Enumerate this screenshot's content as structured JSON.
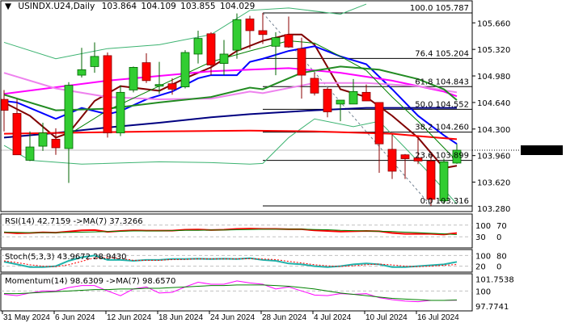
{
  "header": {
    "symbol": "USINDX.U24,Daily",
    "open": "103.864",
    "high": "104.109",
    "low": "103.855",
    "close": "104.029"
  },
  "chart_data": {
    "type": "candlestick",
    "price_axis": {
      "ticks": [
        "105.660",
        "105.320",
        "104.980",
        "104.640",
        "104.300",
        "103.960",
        "103.620",
        "103.280"
      ],
      "current": "104.029",
      "range": [
        103.28,
        105.88
      ]
    },
    "x_ticks": [
      {
        "date": "31 May 2024",
        "i": 0
      },
      {
        "date": "6 Jun 2024",
        "i": 4
      },
      {
        "date": "12 Jun 2024",
        "i": 8
      },
      {
        "date": "18 Jun 2024",
        "i": 12
      },
      {
        "date": "24 Jun 2024",
        "i": 16
      },
      {
        "date": "28 Jun 2024",
        "i": 20
      },
      {
        "date": "4 Jul 2024",
        "i": 24
      },
      {
        "date": "10 Jul 2024",
        "i": 28
      },
      {
        "date": "16 Jul 2024",
        "i": 32
      }
    ],
    "candles": [
      [
        104.68,
        104.8,
        104.27,
        104.54
      ],
      [
        104.5,
        104.68,
        103.97,
        103.97
      ],
      [
        103.9,
        104.27,
        103.89,
        104.07
      ],
      [
        104.08,
        104.38,
        104.02,
        104.25
      ],
      [
        104.17,
        104.31,
        103.97,
        104.06
      ],
      [
        104.05,
        104.9,
        103.61,
        104.86
      ],
      [
        104.99,
        105.34,
        104.96,
        105.06
      ],
      [
        105.1,
        105.41,
        105.02,
        105.23
      ],
      [
        105.24,
        105.28,
        104.19,
        104.25
      ],
      [
        104.25,
        104.86,
        104.21,
        104.77
      ],
      [
        104.8,
        105.1,
        104.77,
        105.09
      ],
      [
        105.15,
        105.27,
        104.89,
        104.92
      ],
      [
        104.85,
        105.16,
        104.75,
        104.87
      ],
      [
        104.88,
        104.95,
        104.74,
        104.81
      ],
      [
        104.84,
        105.31,
        104.82,
        105.28
      ],
      [
        105.26,
        105.56,
        105.14,
        105.46
      ],
      [
        105.52,
        105.54,
        104.99,
        105.12
      ],
      [
        105.14,
        105.44,
        104.99,
        105.26
      ],
      [
        105.31,
        105.78,
        105.2,
        105.7
      ],
      [
        105.71,
        105.75,
        105.33,
        105.56
      ],
      [
        105.56,
        105.787,
        105.39,
        105.51
      ],
      [
        105.36,
        105.54,
        104.99,
        105.47
      ],
      [
        105.51,
        105.74,
        105.34,
        105.35
      ],
      [
        105.33,
        105.47,
        104.69,
        104.99
      ],
      [
        104.95,
        105.02,
        104.73,
        104.76
      ],
      [
        104.81,
        104.83,
        104.45,
        104.52
      ],
      [
        104.62,
        104.66,
        104.4,
        104.67
      ],
      [
        104.62,
        104.94,
        104.62,
        104.78
      ],
      [
        104.77,
        104.87,
        104.66,
        104.66
      ],
      [
        104.64,
        104.64,
        103.74,
        104.11
      ],
      [
        104.04,
        104.23,
        103.66,
        103.76
      ],
      [
        103.97,
        103.98,
        103.66,
        103.92
      ],
      [
        103.93,
        104.2,
        103.85,
        103.89
      ],
      [
        103.89,
        103.97,
        103.316,
        103.4
      ],
      [
        103.38,
        103.92,
        103.34,
        103.88
      ],
      [
        103.864,
        104.109,
        103.855,
        104.029
      ]
    ],
    "colors": {
      "up": "#32cd32",
      "down": "#ff0000",
      "up_border": "#006400",
      "down_border": "#8b0000"
    },
    "moving_averages": [
      {
        "color": "#800000",
        "points": [
          [
            0,
            104.64
          ],
          [
            2,
            104.47
          ],
          [
            4,
            104.19
          ],
          [
            5,
            104.25
          ],
          [
            7,
            104.66
          ],
          [
            9,
            104.85
          ],
          [
            12,
            104.79
          ],
          [
            14,
            104.95
          ],
          [
            16,
            105.09
          ],
          [
            18,
            105.3
          ],
          [
            20,
            105.43
          ],
          [
            22,
            105.51
          ],
          [
            23,
            105.51
          ],
          [
            24,
            105.38
          ],
          [
            26,
            104.81
          ],
          [
            28,
            104.71
          ],
          [
            30,
            104.47
          ],
          [
            32,
            104.19
          ],
          [
            34,
            103.8
          ],
          [
            35,
            103.83
          ]
        ]
      },
      {
        "color": "#0000ff",
        "points": [
          [
            0,
            104.66
          ],
          [
            1,
            104.64
          ],
          [
            4,
            104.43
          ],
          [
            6,
            104.57
          ],
          [
            8,
            104.49
          ],
          [
            9,
            104.53
          ],
          [
            11,
            104.68
          ],
          [
            13,
            104.78
          ],
          [
            15,
            104.95
          ],
          [
            16,
            104.99
          ],
          [
            18,
            104.99
          ],
          [
            19,
            105.16
          ],
          [
            20,
            105.2
          ],
          [
            22,
            105.3
          ],
          [
            24,
            105.36
          ],
          [
            26,
            105.23
          ],
          [
            28,
            105.13
          ],
          [
            30,
            104.81
          ],
          [
            32,
            104.47
          ],
          [
            34,
            104.22
          ],
          [
            35,
            104.11
          ]
        ]
      },
      {
        "color": "#ff00ff",
        "points": [
          [
            0,
            104.75
          ],
          [
            8,
            104.92
          ],
          [
            16,
            105.04
          ],
          [
            19,
            105.06
          ],
          [
            22,
            105.08
          ],
          [
            26,
            105.02
          ],
          [
            30,
            104.92
          ],
          [
            34,
            104.78
          ],
          [
            35,
            104.72
          ]
        ]
      },
      {
        "color": "#ee82ee",
        "points": [
          [
            0,
            105.02
          ],
          [
            4,
            104.82
          ],
          [
            8,
            104.71
          ],
          [
            12,
            104.68
          ],
          [
            16,
            104.69
          ],
          [
            19,
            104.78
          ],
          [
            20,
            104.76
          ],
          [
            24,
            104.89
          ],
          [
            28,
            104.89
          ],
          [
            32,
            104.85
          ],
          [
            35,
            104.77
          ]
        ]
      },
      {
        "color": "#228b22",
        "points": [
          [
            0,
            104.74
          ],
          [
            4,
            104.54
          ],
          [
            8,
            104.56
          ],
          [
            12,
            104.64
          ],
          [
            16,
            104.71
          ],
          [
            19,
            104.83
          ],
          [
            20,
            104.81
          ],
          [
            23,
            105.02
          ],
          [
            26,
            105.1
          ],
          [
            29,
            105.06
          ],
          [
            32,
            104.94
          ],
          [
            34,
            104.81
          ],
          [
            35,
            104.67
          ]
        ]
      },
      {
        "color": "#000080",
        "points": [
          [
            0,
            104.19
          ],
          [
            4,
            104.25
          ],
          [
            8,
            104.32
          ],
          [
            12,
            104.38
          ],
          [
            16,
            104.45
          ],
          [
            19,
            104.49
          ],
          [
            24,
            104.54
          ],
          [
            28,
            104.57
          ],
          [
            35,
            104.57
          ]
        ]
      },
      {
        "color": "#ff0000",
        "points": [
          [
            0,
            104.24
          ],
          [
            12,
            104.27
          ],
          [
            19,
            104.28
          ],
          [
            24,
            104.27
          ],
          [
            30,
            104.24
          ],
          [
            32,
            104.21
          ],
          [
            35,
            104.17
          ]
        ]
      },
      {
        "color": "#008000",
        "thin": true,
        "points": [
          [
            5,
            104.23
          ],
          [
            8,
            104.54
          ],
          [
            12,
            104.85
          ],
          [
            16,
            105.16
          ],
          [
            19,
            105.3
          ],
          [
            22,
            105.43
          ],
          [
            24,
            105.4
          ],
          [
            26,
            105.23
          ],
          [
            28,
            105.05
          ],
          [
            30,
            104.71
          ],
          [
            32,
            104.4
          ],
          [
            34,
            104.06
          ],
          [
            35,
            103.89
          ]
        ]
      }
    ],
    "bollinger": {
      "color": "#3cb371",
      "upper": [
        [
          0,
          105.41
        ],
        [
          4,
          105.2
        ],
        [
          8,
          105.33
        ],
        [
          12,
          105.38
        ],
        [
          16,
          105.51
        ],
        [
          19,
          105.82
        ],
        [
          22,
          105.85
        ],
        [
          26,
          105.77
        ],
        [
          28,
          105.9
        ]
      ],
      "lower": [
        [
          0,
          104.09
        ],
        [
          2,
          103.9
        ],
        [
          6,
          103.85
        ],
        [
          12,
          103.88
        ],
        [
          16,
          103.87
        ],
        [
          19,
          103.85
        ],
        [
          20,
          103.86
        ],
        [
          22,
          104.19
        ],
        [
          24,
          104.43
        ],
        [
          27,
          104.33
        ],
        [
          29,
          104.4
        ],
        [
          31,
          104.06
        ],
        [
          33,
          103.71
        ],
        [
          35,
          103.34
        ]
      ]
    },
    "fibonacci": {
      "levels": [
        {
          "pct": "100.0",
          "price": 105.787
        },
        {
          "pct": "76.4",
          "price": 105.204
        },
        {
          "pct": "61.8",
          "price": 104.843
        },
        {
          "pct": "50.0",
          "price": 104.552
        },
        {
          "pct": "38.2",
          "price": 104.26
        },
        {
          "pct": "23.6",
          "price": 103.899
        },
        {
          "pct": "0.0",
          "price": 103.316
        }
      ],
      "from": 20,
      "to": 33
    },
    "rsi": {
      "label": "RSI(14) 42.7159  ->MA(7) 37.3266",
      "ticks": [
        "100",
        "70",
        "30",
        "0"
      ],
      "levels": [
        70,
        30
      ],
      "values": [
        45,
        42,
        43,
        45,
        44,
        48,
        52,
        53,
        47,
        50,
        52,
        51,
        51,
        51,
        54,
        55,
        53,
        54,
        57,
        58,
        57,
        57,
        56,
        56,
        52,
        50,
        48,
        49,
        50,
        49,
        43,
        40,
        40,
        40,
        38,
        42.7159
      ],
      "ma": [
        46,
        45,
        44,
        44,
        44,
        45,
        46,
        47,
        48,
        49,
        50,
        50,
        50,
        51,
        52,
        52,
        53,
        53,
        54,
        55,
        56,
        56,
        56,
        56,
        55,
        54,
        52,
        51,
        50,
        49,
        48,
        46,
        44,
        42,
        40,
        37.3266
      ]
    },
    "stoch": {
      "label": "Stoch(5,3,3) 43.9672 28.9430",
      "ticks": [
        "100",
        "80",
        "20",
        "0"
      ],
      "levels": [
        80,
        20
      ],
      "k": [
        45,
        30,
        15,
        15,
        20,
        50,
        70,
        80,
        55,
        55,
        50,
        55,
        55,
        60,
        60,
        62,
        60,
        62,
        60,
        65,
        55,
        50,
        35,
        30,
        20,
        15,
        20,
        30,
        35,
        30,
        15,
        15,
        20,
        25,
        30,
        43.9672
      ],
      "d": [
        50,
        40,
        28,
        20,
        17,
        28,
        47,
        67,
        68,
        63,
        53,
        53,
        53,
        57,
        58,
        61,
        61,
        61,
        61,
        62,
        60,
        57,
        47,
        38,
        28,
        22,
        18,
        22,
        28,
        32,
        27,
        20,
        17,
        20,
        25,
        28.943
      ]
    },
    "momentum": {
      "label": "Momentum(14) 98.6309  ->MA(7) 98.6570",
      "ticks": [
        "101.7538",
        "100",
        "97.7741"
      ],
      "levels": [
        100
      ],
      "values": [
        99.5,
        99.3,
        99.7,
        100.0,
        100.0,
        100.5,
        100.8,
        100.8,
        100.0,
        99.3,
        100.3,
        100.6,
        99.7,
        99.8,
        100.6,
        101.3,
        101.0,
        101.0,
        101.5,
        101.2,
        101.0,
        100.3,
        100.6,
        100.0,
        99.4,
        99.3,
        99.6,
        99.5,
        99.6,
        99.0,
        98.7,
        98.5,
        98.4,
        98.6,
        98.6,
        98.6309
      ],
      "ma": [
        99.6,
        99.6,
        99.7,
        99.8,
        99.9,
        100.0,
        100.1,
        100.2,
        100.2,
        100.3,
        100.3,
        100.4,
        100.4,
        100.5,
        100.6,
        100.7,
        100.8,
        100.8,
        100.9,
        100.9,
        100.9,
        100.8,
        100.7,
        100.5,
        100.3,
        100.0,
        99.7,
        99.5,
        99.3,
        99.1,
        98.9,
        98.8,
        98.7,
        98.6,
        98.6,
        98.657
      ]
    }
  }
}
